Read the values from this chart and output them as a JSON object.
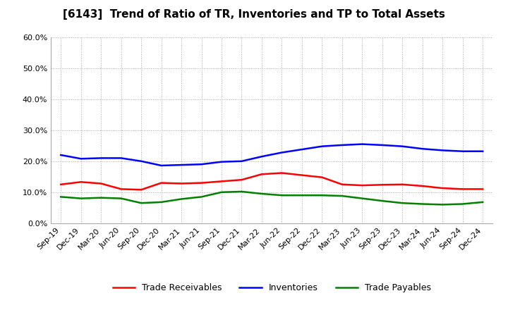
{
  "title": "[6143]  Trend of Ratio of TR, Inventories and TP to Total Assets",
  "x_labels": [
    "Sep-19",
    "Dec-19",
    "Mar-20",
    "Jun-20",
    "Sep-20",
    "Dec-20",
    "Mar-21",
    "Jun-21",
    "Sep-21",
    "Dec-21",
    "Mar-22",
    "Jun-22",
    "Sep-22",
    "Dec-22",
    "Mar-23",
    "Jun-23",
    "Sep-23",
    "Dec-23",
    "Mar-24",
    "Jun-24",
    "Sep-24",
    "Dec-24"
  ],
  "trade_receivables": [
    0.125,
    0.133,
    0.128,
    0.11,
    0.108,
    0.13,
    0.128,
    0.13,
    0.135,
    0.14,
    0.158,
    0.162,
    0.155,
    0.148,
    0.125,
    0.122,
    0.124,
    0.125,
    0.12,
    0.113,
    0.11,
    0.11
  ],
  "inventories": [
    0.22,
    0.208,
    0.21,
    0.21,
    0.2,
    0.186,
    0.188,
    0.19,
    0.198,
    0.2,
    0.215,
    0.228,
    0.238,
    0.248,
    0.252,
    0.255,
    0.252,
    0.248,
    0.24,
    0.235,
    0.232,
    0.232
  ],
  "trade_payables": [
    0.085,
    0.08,
    0.082,
    0.08,
    0.065,
    0.068,
    0.078,
    0.085,
    0.1,
    0.102,
    0.095,
    0.09,
    0.09,
    0.09,
    0.088,
    0.08,
    0.072,
    0.065,
    0.062,
    0.06,
    0.062,
    0.068
  ],
  "tr_color": "#ff0000",
  "inv_color": "#0000ff",
  "tp_color": "#008000",
  "ylim": [
    0.0,
    0.6
  ],
  "yticks": [
    0.0,
    0.1,
    0.2,
    0.3,
    0.4,
    0.5,
    0.6
  ],
  "bg_color": "#ffffff",
  "plot_bg_color": "#ffffff",
  "grid_color": "#aaaaaa",
  "line_width": 1.8
}
